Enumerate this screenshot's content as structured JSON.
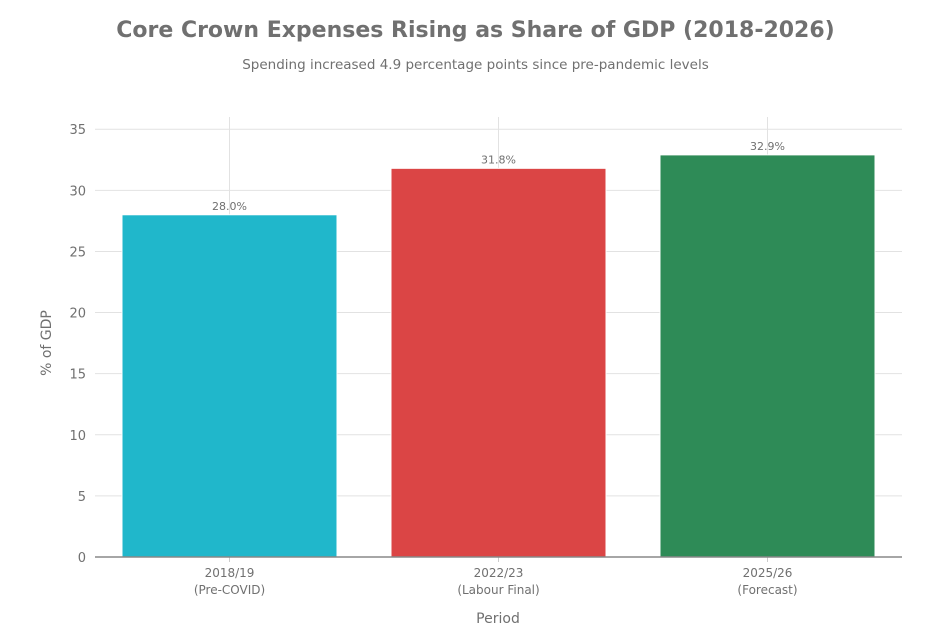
{
  "chart_data": {
    "type": "bar",
    "title": "Core Crown Expenses Rising as Share of GDP (2018-2026)",
    "subtitle": "Spending increased 4.9 percentage points since pre-pandemic levels",
    "xlabel": "Period",
    "ylabel": "% of GDP",
    "categories": [
      {
        "line1": "2018/19",
        "line2": "(Pre-COVID)"
      },
      {
        "line1": "2022/23",
        "line2": "(Labour Final)"
      },
      {
        "line1": "2025/26",
        "line2": "(Forecast)"
      }
    ],
    "values": [
      28.0,
      31.8,
      32.9
    ],
    "data_labels": [
      "28.0%",
      "31.8%",
      "32.9%"
    ],
    "colors": [
      "#20b7cb",
      "#db4545",
      "#2e8b57"
    ],
    "ylim": [
      0,
      36
    ],
    "yticks": [
      0,
      5,
      10,
      15,
      20,
      25,
      30,
      35
    ],
    "grid": true
  }
}
